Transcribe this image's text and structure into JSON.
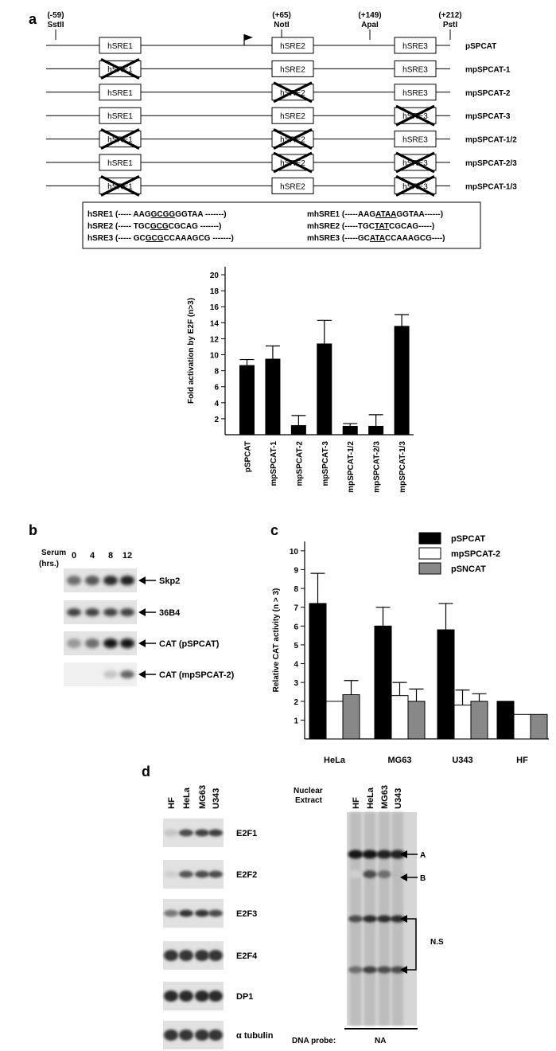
{
  "panels": {
    "a": "a",
    "b": "b",
    "c": "c",
    "d": "d"
  },
  "panel_a": {
    "positions": [
      {
        "coord": "(-59)",
        "site": "SstII"
      },
      {
        "coord": "(+65)",
        "site": "NotI"
      },
      {
        "coord": "(+149)",
        "site": "ApaI"
      },
      {
        "coord": "(+212)",
        "site": "PstI"
      }
    ],
    "box_labels": [
      "hSRE1",
      "hSRE2",
      "hSRE3"
    ],
    "constructs": [
      {
        "name": "pSPCAT",
        "mutated": [
          false,
          false,
          false
        ]
      },
      {
        "name": "mpSPCAT-1",
        "mutated": [
          true,
          false,
          false
        ]
      },
      {
        "name": "mpSPCAT-2",
        "mutated": [
          false,
          true,
          false
        ]
      },
      {
        "name": "mpSPCAT-3",
        "mutated": [
          false,
          false,
          true
        ]
      },
      {
        "name": "mpSPCAT-1/2",
        "mutated": [
          true,
          true,
          false
        ]
      },
      {
        "name": "mpSPCAT-2/3",
        "mutated": [
          false,
          true,
          true
        ]
      },
      {
        "name": "mpSPCAT-1/3",
        "mutated": [
          true,
          false,
          true
        ]
      }
    ],
    "sequences_left": [
      {
        "name": "hSRE1",
        "pre": " (----- AAG",
        "core": "GCGG",
        "post": "GGTAA -------)"
      },
      {
        "name": "hSRE2",
        "pre": " (----- TGC",
        "core": "GCG",
        "post": "CGCAG -------)"
      },
      {
        "name": "hSRE3",
        "pre": " (----- GC",
        "core": "GCG",
        "post": "CCAAAGCG -------)"
      }
    ],
    "sequences_right": [
      {
        "name": "mhSRE1",
        "pre": " (-----AAG",
        "core": "ATAA",
        "post": "GGTAA------)"
      },
      {
        "name": "mhSRE2",
        "pre": " (-----TGC",
        "core": "TAT",
        "post": "CGCAG-----)"
      },
      {
        "name": "mhSRE3",
        "pre": " (-----GC",
        "core": "ATA",
        "post": "CCAAAGCG----)"
      }
    ]
  },
  "chart_data": [
    {
      "type": "bar",
      "panel": "a",
      "ylabel": "Fold activation by E2F (n>3)",
      "ylim": [
        0,
        21
      ],
      "yticks": [
        2,
        4,
        6,
        8,
        10,
        12,
        14,
        16,
        18,
        20
      ],
      "categories": [
        "pSPCAT",
        "mpSPCAT-1",
        "mpSPCAT-2",
        "mpSPCAT-3",
        "mpSPCAT-1/2",
        "mpSPCAT-2/3",
        "mpSPCAT-1/3"
      ],
      "values": [
        8.7,
        9.5,
        1.2,
        11.4,
        1.1,
        1.1,
        13.6
      ],
      "errors": [
        0.7,
        1.6,
        1.2,
        2.9,
        0.3,
        1.4,
        1.4
      ],
      "color": "#000000"
    },
    {
      "type": "bar",
      "panel": "c",
      "ylabel": "Relative CAT activity (n > 3)",
      "ylim": [
        0,
        10.5
      ],
      "yticks": [
        1,
        2,
        3,
        4,
        5,
        6,
        7,
        8,
        9,
        10
      ],
      "categories": [
        "HeLa",
        "MG63",
        "U343",
        "HF"
      ],
      "series": [
        {
          "name": "pSPCAT",
          "color": "#000000",
          "values": [
            7.2,
            6.0,
            5.8,
            2.0
          ],
          "errors": [
            1.6,
            1.0,
            1.4,
            0
          ]
        },
        {
          "name": "mpSPCAT-2",
          "color": "#ffffff",
          "values": [
            2.0,
            2.3,
            1.8,
            1.3
          ],
          "errors": [
            0,
            0.7,
            0.8,
            0
          ]
        },
        {
          "name": "pSNCAT",
          "color": "#888888",
          "values": [
            2.35,
            2.0,
            2.0,
            1.3
          ],
          "errors": [
            0.75,
            0.65,
            0.4,
            0
          ]
        }
      ],
      "legend": "top-right"
    }
  ],
  "panel_b": {
    "ylabel_line1": "Serum",
    "ylabel_line2": "(hrs.)",
    "times": [
      "0",
      "4",
      "8",
      "12"
    ],
    "rows": [
      {
        "label": "Skp2",
        "intensity": [
          0.55,
          0.65,
          0.85,
          0.9
        ]
      },
      {
        "label": "36B4",
        "intensity": [
          0.75,
          0.75,
          0.75,
          0.75
        ]
      },
      {
        "label": "CAT (pSPCAT)",
        "intensity": [
          0.35,
          0.55,
          0.95,
          0.95
        ]
      },
      {
        "label": "CAT (mpSPCAT-2)",
        "intensity": [
          0.0,
          0.0,
          0.15,
          0.6
        ]
      }
    ]
  },
  "panel_d": {
    "cell_lines": [
      "HF",
      "HeLa",
      "MG63",
      "U343"
    ],
    "western": [
      {
        "label": "E2F1",
        "intensity": [
          0.15,
          0.7,
          0.75,
          0.75
        ]
      },
      {
        "label": "E2F2",
        "intensity": [
          0.1,
          0.65,
          0.7,
          0.7
        ]
      },
      {
        "label": "E2F3",
        "intensity": [
          0.5,
          0.8,
          0.8,
          0.7
        ]
      },
      {
        "label": "E2F4",
        "intensity": [
          0.8,
          0.8,
          0.8,
          0.8
        ]
      },
      {
        "label": "DP1",
        "intensity": [
          0.85,
          0.85,
          0.85,
          0.85
        ]
      },
      {
        "label": "α tubulin",
        "intensity": [
          0.8,
          0.8,
          0.8,
          0.8
        ]
      }
    ],
    "emsa_header_line1": "Nuclear",
    "emsa_header_line2": "Extract",
    "emsa_labels": {
      "a": "A",
      "b": "B",
      "ns": "N.S"
    },
    "dna_probe_label": "DNA probe:",
    "dna_probe_value": "NA"
  }
}
